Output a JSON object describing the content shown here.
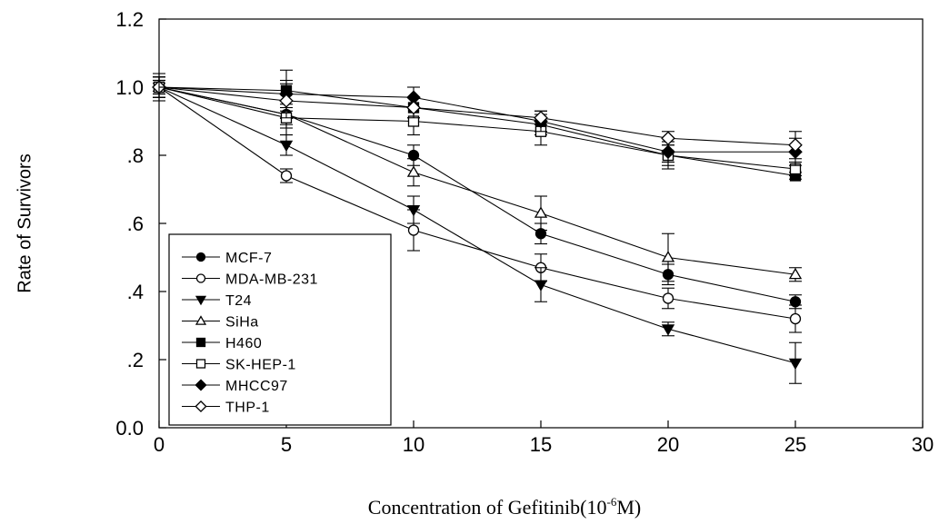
{
  "chart_data": {
    "type": "line",
    "title": "",
    "xlabel_main": "Concentration of Gefitinib(10",
    "xlabel_sup": "-6",
    "xlabel_end": "M)",
    "ylabel": "Rate of Survivors",
    "xlim": [
      0,
      30
    ],
    "ylim": [
      0,
      1.2
    ],
    "xticks": [
      0,
      5,
      10,
      15,
      20,
      25,
      30
    ],
    "xtick_labels": [
      "0",
      "5",
      "10",
      "15",
      "20",
      "25",
      "30"
    ],
    "yticks": [
      0,
      0.2,
      0.4,
      0.6,
      0.8,
      1.0,
      1.2
    ],
    "ytick_labels": [
      "0.0",
      ".2",
      ".4",
      ".6",
      ".8",
      "1.0",
      "1.2"
    ],
    "grid": false,
    "legend_position": "bottom-left",
    "x": [
      0,
      5,
      10,
      15,
      20,
      25
    ],
    "series": [
      {
        "name": "MCF-7",
        "marker": "circle",
        "filled": true,
        "values": [
          1.0,
          0.92,
          0.8,
          0.57,
          0.45,
          0.37
        ],
        "errors": [
          0.03,
          0.04,
          0.03,
          0.03,
          0.03,
          0.02
        ]
      },
      {
        "name": "MDA-MB-231",
        "marker": "circle",
        "filled": false,
        "values": [
          1.0,
          0.74,
          0.58,
          0.47,
          0.38,
          0.32
        ],
        "errors": [
          0.02,
          0.02,
          0.06,
          0.04,
          0.03,
          0.04
        ]
      },
      {
        "name": "T24",
        "marker": "triangle-down",
        "filled": true,
        "values": [
          1.0,
          0.83,
          0.64,
          0.42,
          0.29,
          0.19
        ],
        "errors": [
          0.02,
          0.03,
          0.04,
          0.05,
          0.02,
          0.06
        ]
      },
      {
        "name": "SiHa",
        "marker": "triangle-up",
        "filled": false,
        "values": [
          1.0,
          0.92,
          0.75,
          0.63,
          0.5,
          0.45
        ],
        "errors": [
          0.02,
          0.03,
          0.04,
          0.05,
          0.07,
          0.02
        ]
      },
      {
        "name": "H460",
        "marker": "square",
        "filled": true,
        "values": [
          1.0,
          0.99,
          0.94,
          0.89,
          0.8,
          0.74
        ],
        "errors": [
          0.04,
          0.06,
          0.03,
          0.03,
          0.03,
          0.01
        ]
      },
      {
        "name": "SK-HEP-1",
        "marker": "square",
        "filled": false,
        "values": [
          1.0,
          0.91,
          0.9,
          0.87,
          0.8,
          0.76
        ],
        "errors": [
          0.03,
          0.05,
          0.04,
          0.04,
          0.04,
          0.02
        ]
      },
      {
        "name": "MHCC97",
        "marker": "diamond",
        "filled": true,
        "values": [
          1.0,
          0.98,
          0.97,
          0.9,
          0.81,
          0.81
        ],
        "errors": [
          0.03,
          0.04,
          0.03,
          0.03,
          0.03,
          0.04
        ]
      },
      {
        "name": "THP-1",
        "marker": "diamond",
        "filled": false,
        "values": [
          1.0,
          0.96,
          0.94,
          0.91,
          0.85,
          0.83
        ],
        "errors": [
          0.03,
          0.05,
          0.03,
          0.02,
          0.02,
          0.04
        ]
      }
    ]
  }
}
